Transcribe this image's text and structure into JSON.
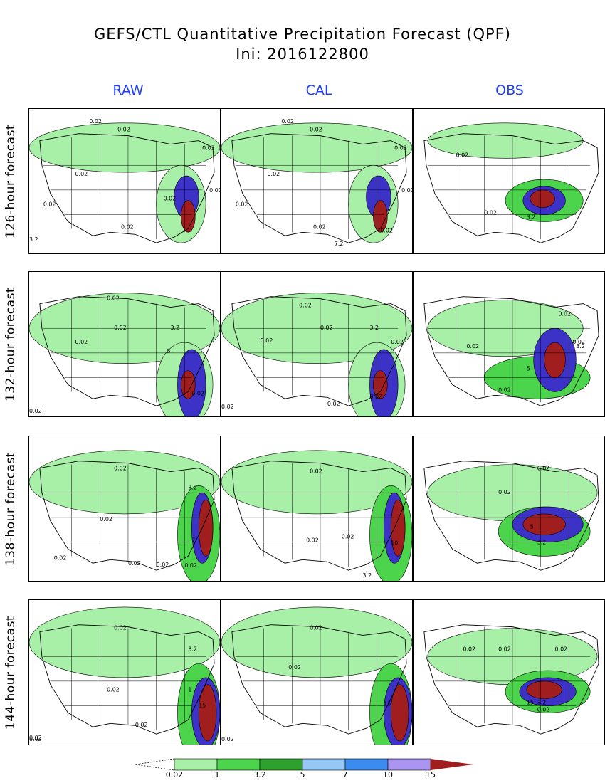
{
  "title_line1": "GEFS/CTL Quantitative Precipitation Forecast (QPF)",
  "title_line2": "Ini: 2016122800",
  "columns": [
    "RAW",
    "CAL",
    "OBS"
  ],
  "rows": [
    "126-hour forecast",
    "132-hour forecast",
    "138-hour forecast",
    "144-hour forecast"
  ],
  "colorbar": {
    "labels": [
      "0.02",
      "1",
      "3.2",
      "5",
      "7",
      "10",
      "15"
    ],
    "colors": [
      "#a8f0a8",
      "#4cd44c",
      "#2ea02e",
      "#96c8f5",
      "#3c8cf0",
      "#aa96f0",
      "#3c32c8",
      "#a01e1e"
    ]
  },
  "panels": [
    [
      {
        "labels": [
          "0.02",
          "0.02",
          "0.02",
          "0.02",
          "0.02",
          "0.02",
          "0.02",
          "0.02",
          "3.2"
        ]
      },
      {
        "labels": [
          "0.02",
          "0.02",
          "0.02",
          "0.02",
          "0.02",
          "0.02",
          "0.02",
          "0.02",
          "7.2"
        ]
      },
      {
        "labels": [
          "0.02",
          "0.02",
          "3.2"
        ]
      }
    ],
    [
      {
        "labels": [
          "0.02",
          "0.02",
          "0.02",
          "0.02",
          "3.2",
          "5",
          "0.02"
        ]
      },
      {
        "labels": [
          "0.02",
          "0.02",
          "0.02",
          "0.02",
          "3.2",
          "0.02",
          "0.02",
          "0.02"
        ]
      },
      {
        "labels": [
          "0.02",
          "0.02",
          "0.02",
          "3.2",
          "5",
          "0.02"
        ]
      }
    ],
    [
      {
        "labels": [
          "0.02",
          "0.02",
          "0.02",
          "0.02",
          "3.2",
          "7",
          "0.02",
          "0.02"
        ]
      },
      {
        "labels": [
          "0.02",
          "0.02",
          "0.02",
          "10",
          "3.2"
        ]
      },
      {
        "labels": [
          "0.02",
          "0.02",
          "5",
          "3.2"
        ]
      }
    ],
    [
      {
        "labels": [
          "0.02",
          "0.02",
          "0.02",
          "0.02",
          "3.2",
          "1",
          "15",
          "0.02"
        ]
      },
      {
        "labels": [
          "0.02",
          "0.02",
          "0.02",
          "1",
          "15"
        ]
      },
      {
        "labels": [
          "0.02",
          "0.02",
          "0.02",
          "15",
          "3.2",
          "0.02"
        ]
      }
    ]
  ]
}
